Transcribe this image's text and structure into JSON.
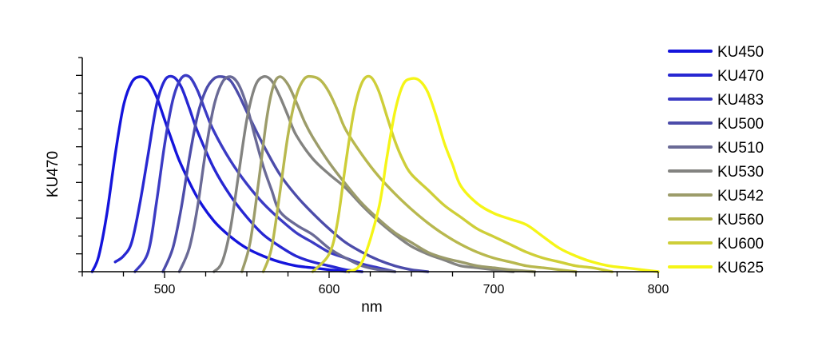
{
  "chart_data": {
    "type": "line",
    "xlabel": "nm",
    "ylabel": "KU470",
    "xlim": [
      450,
      800
    ],
    "ylim": [
      0,
      1.0
    ],
    "x_ticks": [
      500,
      600,
      700,
      800
    ],
    "x_minor_step": 25,
    "y_ticks": [],
    "y_minor_count": 12,
    "grid": false,
    "legend": "right",
    "series": [
      {
        "name": "KU450",
        "color": "#1414dc",
        "x": [
          456,
          460,
          465,
          470,
          475,
          480,
          485,
          490,
          495,
          500,
          505,
          510,
          520,
          530,
          540,
          550,
          560,
          570,
          580,
          590,
          600,
          612
        ],
        "y": [
          0,
          0.08,
          0.3,
          0.6,
          0.85,
          0.97,
          1.0,
          0.98,
          0.9,
          0.78,
          0.66,
          0.55,
          0.38,
          0.26,
          0.18,
          0.12,
          0.08,
          0.05,
          0.03,
          0.02,
          0.01,
          0
        ]
      },
      {
        "name": "KU470",
        "color": "#2727d2",
        "x": [
          470,
          475,
          480,
          485,
          490,
          495,
          500,
          505,
          510,
          515,
          520,
          530,
          540,
          550,
          560,
          570,
          580,
          590,
          600,
          610,
          620
        ],
        "y": [
          0.05,
          0.08,
          0.15,
          0.35,
          0.6,
          0.85,
          0.98,
          1.0,
          0.95,
          0.84,
          0.72,
          0.53,
          0.39,
          0.28,
          0.19,
          0.13,
          0.08,
          0.05,
          0.03,
          0.01,
          0
        ]
      },
      {
        "name": "KU483",
        "color": "#3b3bc4",
        "x": [
          482,
          490,
          495,
          500,
          505,
          510,
          515,
          520,
          525,
          530,
          540,
          550,
          560,
          570,
          580,
          590,
          600,
          610,
          620,
          630,
          640
        ],
        "y": [
          0,
          0.1,
          0.35,
          0.65,
          0.88,
          0.99,
          1.0,
          0.93,
          0.82,
          0.72,
          0.57,
          0.45,
          0.35,
          0.27,
          0.2,
          0.15,
          0.1,
          0.07,
          0.04,
          0.02,
          0
        ]
      },
      {
        "name": "KU500",
        "color": "#4c4caa",
        "x": [
          499,
          505,
          510,
          515,
          520,
          525,
          530,
          535,
          540,
          545,
          550,
          560,
          570,
          580,
          590,
          600,
          610,
          620,
          630,
          640,
          650,
          660
        ],
        "y": [
          0,
          0.12,
          0.32,
          0.58,
          0.8,
          0.93,
          0.99,
          1.0,
          0.98,
          0.91,
          0.82,
          0.65,
          0.5,
          0.39,
          0.3,
          0.22,
          0.15,
          0.1,
          0.06,
          0.03,
          0.01,
          0
        ]
      },
      {
        "name": "KU510",
        "color": "#6a6a96",
        "x": [
          509,
          515,
          520,
          525,
          530,
          535,
          540,
          545,
          550,
          555,
          560,
          565,
          570,
          580,
          590,
          600,
          610,
          620,
          630,
          640
        ],
        "y": [
          0,
          0.12,
          0.33,
          0.62,
          0.85,
          0.97,
          1.0,
          0.96,
          0.85,
          0.69,
          0.54,
          0.42,
          0.31,
          0.24,
          0.19,
          0.12,
          0.07,
          0.03,
          0.01,
          0
        ]
      },
      {
        "name": "KU530",
        "color": "#838380",
        "x": [
          530,
          535,
          540,
          545,
          550,
          555,
          560,
          565,
          570,
          575,
          580,
          590,
          600,
          610,
          620,
          630,
          640,
          650,
          660,
          670,
          680,
          690,
          700,
          712
        ],
        "y": [
          0,
          0.05,
          0.22,
          0.5,
          0.78,
          0.95,
          1.0,
          0.98,
          0.9,
          0.8,
          0.7,
          0.58,
          0.5,
          0.43,
          0.34,
          0.26,
          0.19,
          0.13,
          0.09,
          0.06,
          0.03,
          0.02,
          0.01,
          0
        ]
      },
      {
        "name": "KU542",
        "color": "#9c9c6a",
        "x": [
          547,
          552,
          557,
          562,
          566,
          570,
          575,
          580,
          585,
          590,
          600,
          610,
          620,
          630,
          640,
          650,
          660,
          670,
          680,
          690,
          700,
          710,
          725
        ],
        "y": [
          0,
          0.15,
          0.45,
          0.78,
          0.95,
          1.0,
          0.96,
          0.87,
          0.77,
          0.69,
          0.56,
          0.45,
          0.35,
          0.27,
          0.2,
          0.15,
          0.1,
          0.07,
          0.05,
          0.03,
          0.02,
          0.01,
          0
        ]
      },
      {
        "name": "KU560",
        "color": "#b8b84e",
        "x": [
          560,
          565,
          570,
          575,
          580,
          585,
          590,
          595,
          600,
          605,
          610,
          620,
          630,
          640,
          650,
          660,
          670,
          680,
          690,
          700,
          710,
          720,
          730,
          740,
          750
        ],
        "y": [
          0,
          0.12,
          0.4,
          0.7,
          0.9,
          0.99,
          1.0,
          0.98,
          0.92,
          0.83,
          0.73,
          0.6,
          0.49,
          0.4,
          0.32,
          0.25,
          0.19,
          0.14,
          0.1,
          0.07,
          0.05,
          0.03,
          0.02,
          0.01,
          0
        ]
      },
      {
        "name": "KU600",
        "color": "#cece38",
        "x": [
          590,
          600,
          605,
          610,
          615,
          620,
          625,
          630,
          635,
          640,
          645,
          650,
          660,
          670,
          680,
          690,
          700,
          710,
          720,
          730,
          740,
          750,
          760,
          772
        ],
        "y": [
          0,
          0.09,
          0.25,
          0.55,
          0.82,
          0.97,
          1.0,
          0.93,
          0.8,
          0.67,
          0.57,
          0.5,
          0.42,
          0.34,
          0.28,
          0.22,
          0.18,
          0.14,
          0.1,
          0.07,
          0.05,
          0.03,
          0.02,
          0
        ]
      },
      {
        "name": "KU625",
        "color": "#f5f517",
        "x": [
          611,
          620,
          630,
          635,
          640,
          645,
          650,
          655,
          660,
          665,
          670,
          675,
          680,
          690,
          700,
          710,
          720,
          730,
          740,
          750,
          760,
          770,
          780,
          790,
          800
        ],
        "y": [
          0,
          0.05,
          0.32,
          0.58,
          0.82,
          0.96,
          0.99,
          0.98,
          0.92,
          0.8,
          0.66,
          0.55,
          0.44,
          0.35,
          0.3,
          0.27,
          0.24,
          0.18,
          0.12,
          0.08,
          0.05,
          0.03,
          0.02,
          0.01,
          0
        ]
      }
    ]
  }
}
